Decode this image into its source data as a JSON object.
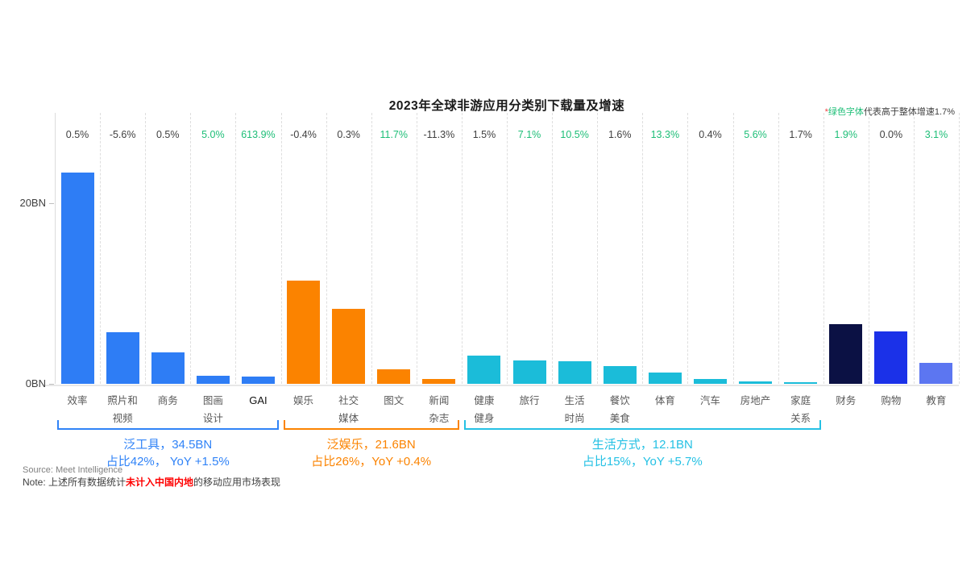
{
  "top_note": {
    "star": "*",
    "green_part": "绿色字体",
    "rest": "代表高于整体增速1.7%"
  },
  "footer": {
    "source": "Source: Meet Intelligence",
    "note_prefix": "Note: 上述所有数据统计",
    "note_red": "未计入中国内地",
    "note_suffix": "的移动应用市场表现"
  },
  "chart_data": {
    "type": "bar",
    "title": "2023年全球非游应用分类别下载量及增速",
    "unit": "BN",
    "ylim": [
      0,
      30
    ],
    "grid": "vertical-dashed",
    "yticks": [
      {
        "value": 0,
        "label": "0BN"
      },
      {
        "value": 20,
        "label": "20BN"
      }
    ],
    "categories": [
      "效率",
      "照片和视频",
      "商务",
      "图画设计",
      "GAI",
      "娱乐",
      "社交媒体",
      "图文",
      "新闻杂志",
      "健康健身",
      "旅行",
      "生活时尚",
      "餐饮美食",
      "体育",
      "汽车",
      "房地产",
      "家庭关系",
      "财务",
      "购物",
      "教育"
    ],
    "category_lines": [
      [
        "效率"
      ],
      [
        "照片和",
        "视频"
      ],
      [
        "商务"
      ],
      [
        "图画",
        "设计"
      ],
      [
        "GAI"
      ],
      [
        "娱乐"
      ],
      [
        "社交",
        "媒体"
      ],
      [
        "图文"
      ],
      [
        "新闻",
        "杂志"
      ],
      [
        "健康",
        "健身"
      ],
      [
        "旅行"
      ],
      [
        "生活",
        "时尚"
      ],
      [
        "餐饮",
        "美食"
      ],
      [
        "体育"
      ],
      [
        "汽车"
      ],
      [
        "房地产"
      ],
      [
        "家庭",
        "关系"
      ],
      [
        "财务"
      ],
      [
        "购物"
      ],
      [
        "教育"
      ]
    ],
    "values": [
      23.4,
      5.7,
      3.5,
      0.9,
      0.8,
      11.4,
      8.3,
      1.6,
      0.5,
      3.1,
      2.6,
      2.5,
      2.0,
      1.25,
      0.5,
      0.25,
      0.2,
      6.6,
      5.8,
      2.3
    ],
    "growth": [
      "0.5%",
      "-5.6%",
      "0.5%",
      "5.0%",
      "613.9%",
      "-0.4%",
      "0.3%",
      "11.7%",
      "-11.3%",
      "1.5%",
      "7.1%",
      "10.5%",
      "1.6%",
      "13.3%",
      "0.4%",
      "5.6%",
      "1.7%",
      "1.9%",
      "0.0%",
      "3.1%"
    ],
    "growth_green": [
      false,
      false,
      false,
      true,
      true,
      false,
      false,
      true,
      false,
      false,
      true,
      true,
      false,
      true,
      false,
      true,
      false,
      true,
      false,
      true
    ],
    "bar_colors": [
      "#2E7DF5",
      "#2E7DF5",
      "#2E7DF5",
      "#2E7DF5",
      "#2E7DF5",
      "#FB8300",
      "#FB8300",
      "#FB8300",
      "#FB8300",
      "#1BBCD9",
      "#1BBCD9",
      "#1BBCD9",
      "#1BBCD9",
      "#1BBCD9",
      "#1BBCD9",
      "#1BBCD9",
      "#1BBCD9",
      "#0B1144",
      "#1B31E8",
      "#5C76F1"
    ],
    "groups": [
      {
        "label": "泛工具，34.5BN",
        "detail": "占比42%， YoY +1.5%",
        "color": "#3083F7",
        "from": 0,
        "to": 4
      },
      {
        "label": "泛娱乐，21.6BN",
        "detail": "占比26%，YoY +0.4%",
        "color": "#FB8300",
        "from": 5,
        "to": 8
      },
      {
        "label": "生活方式，12.1BN",
        "detail": "占比15%，YoY +5.7%",
        "color": "#25C1E4",
        "from": 9,
        "to": 16
      }
    ],
    "colors": {
      "green_text": "#1DBE77",
      "dark_text": "#404040",
      "overall_growth_reference": "1.7%"
    }
  }
}
